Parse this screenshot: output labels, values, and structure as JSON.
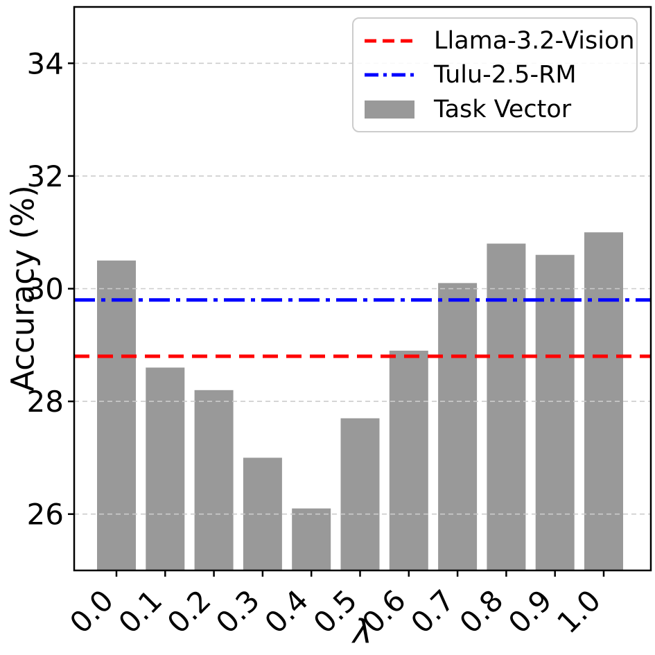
{
  "chart_data": {
    "type": "bar",
    "title": "",
    "xlabel": "λ",
    "ylabel": "Accuracy (%)",
    "categories": [
      "0.0",
      "0.1",
      "0.2",
      "0.3",
      "0.4",
      "0.5",
      "0.6",
      "0.7",
      "0.8",
      "0.9",
      "1.0"
    ],
    "bar_series": {
      "name": "Task Vector",
      "color": "#999999",
      "values": [
        30.5,
        28.6,
        28.2,
        27.0,
        26.1,
        27.7,
        28.9,
        30.1,
        30.8,
        30.6,
        31.0
      ]
    },
    "hlines": [
      {
        "name": "Llama-3.2-Vision",
        "value": 28.8,
        "color": "#ff0000",
        "dash": "dashed"
      },
      {
        "name": "Tulu-2.5-RM",
        "value": 29.8,
        "color": "#0000ff",
        "dash": "dashdot"
      }
    ],
    "ylim": [
      25,
      35
    ],
    "yticks": [
      26,
      28,
      30,
      32,
      34
    ],
    "grid": {
      "axis": "y",
      "style": "dashed",
      "color": "#cccccc"
    },
    "axis_color": "#000000",
    "background": "#ffffff",
    "legend": {
      "position": "upper-right",
      "entries": [
        "Llama-3.2-Vision",
        "Tulu-2.5-RM",
        "Task Vector"
      ]
    }
  }
}
